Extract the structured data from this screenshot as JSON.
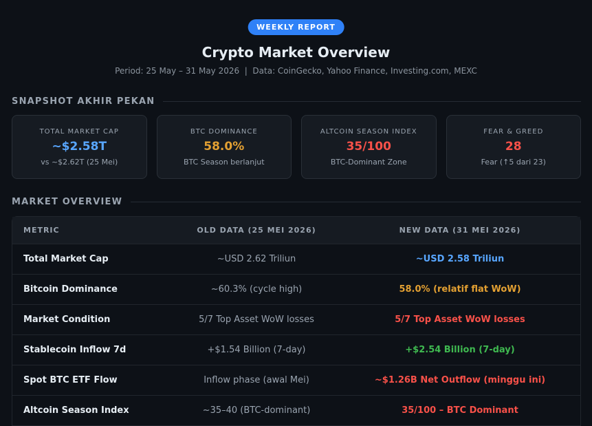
{
  "header": {
    "badge": "WEEKLY REPORT",
    "title": "Crypto Market Overview",
    "subtitle": "Period: 25 May – 31 May 2026  |  Data: CoinGecko, Yahoo Finance, Investing.com, MEXC"
  },
  "snapshot": {
    "title": "SNAPSHOT AKHIR PEKAN",
    "cards": [
      {
        "label": "TOTAL MARKET CAP",
        "value": "~$2.58T",
        "note": "vs ~$2.62T (25 Mei)"
      },
      {
        "label": "BTC DOMINANCE",
        "value": "58.0%",
        "note": "BTC Season berlanjut"
      },
      {
        "label": "ALTCOIN SEASON INDEX",
        "value": "35/100",
        "note": "BTC-Dominant Zone"
      },
      {
        "label": "FEAR & GREED",
        "value": "28",
        "note": "Fear (↑5 dari 23)"
      }
    ]
  },
  "market_overview": {
    "title": "MARKET OVERVIEW",
    "table": {
      "columns": [
        "METRIC",
        "OLD DATA (25 MEI 2026)",
        "NEW DATA (31 MEI 2026)"
      ],
      "rows": [
        [
          "Total Market Cap",
          "~USD 2.62 Triliun",
          "~USD 2.58 Triliun"
        ],
        [
          "Bitcoin Dominance",
          "~60.3% (cycle high)",
          "58.0% (relatif flat WoW)"
        ],
        [
          "Market Condition",
          "5/7 Top Asset WoW losses",
          "5/7 Top Asset WoW losses"
        ],
        [
          "Stablecoin Inflow 7d",
          "+$1.54 Billion (7-day)",
          "+$2.54 Billion (7-day)"
        ],
        [
          "Spot BTC ETF Flow",
          "Inflow phase (awal Mei)",
          "~$1.26B Net Outflow (minggu ini)"
        ],
        [
          "Altcoin Season Index",
          "~35–40 (BTC-dominant)",
          "35/100 – BTC Dominant"
        ]
      ]
    }
  }
}
